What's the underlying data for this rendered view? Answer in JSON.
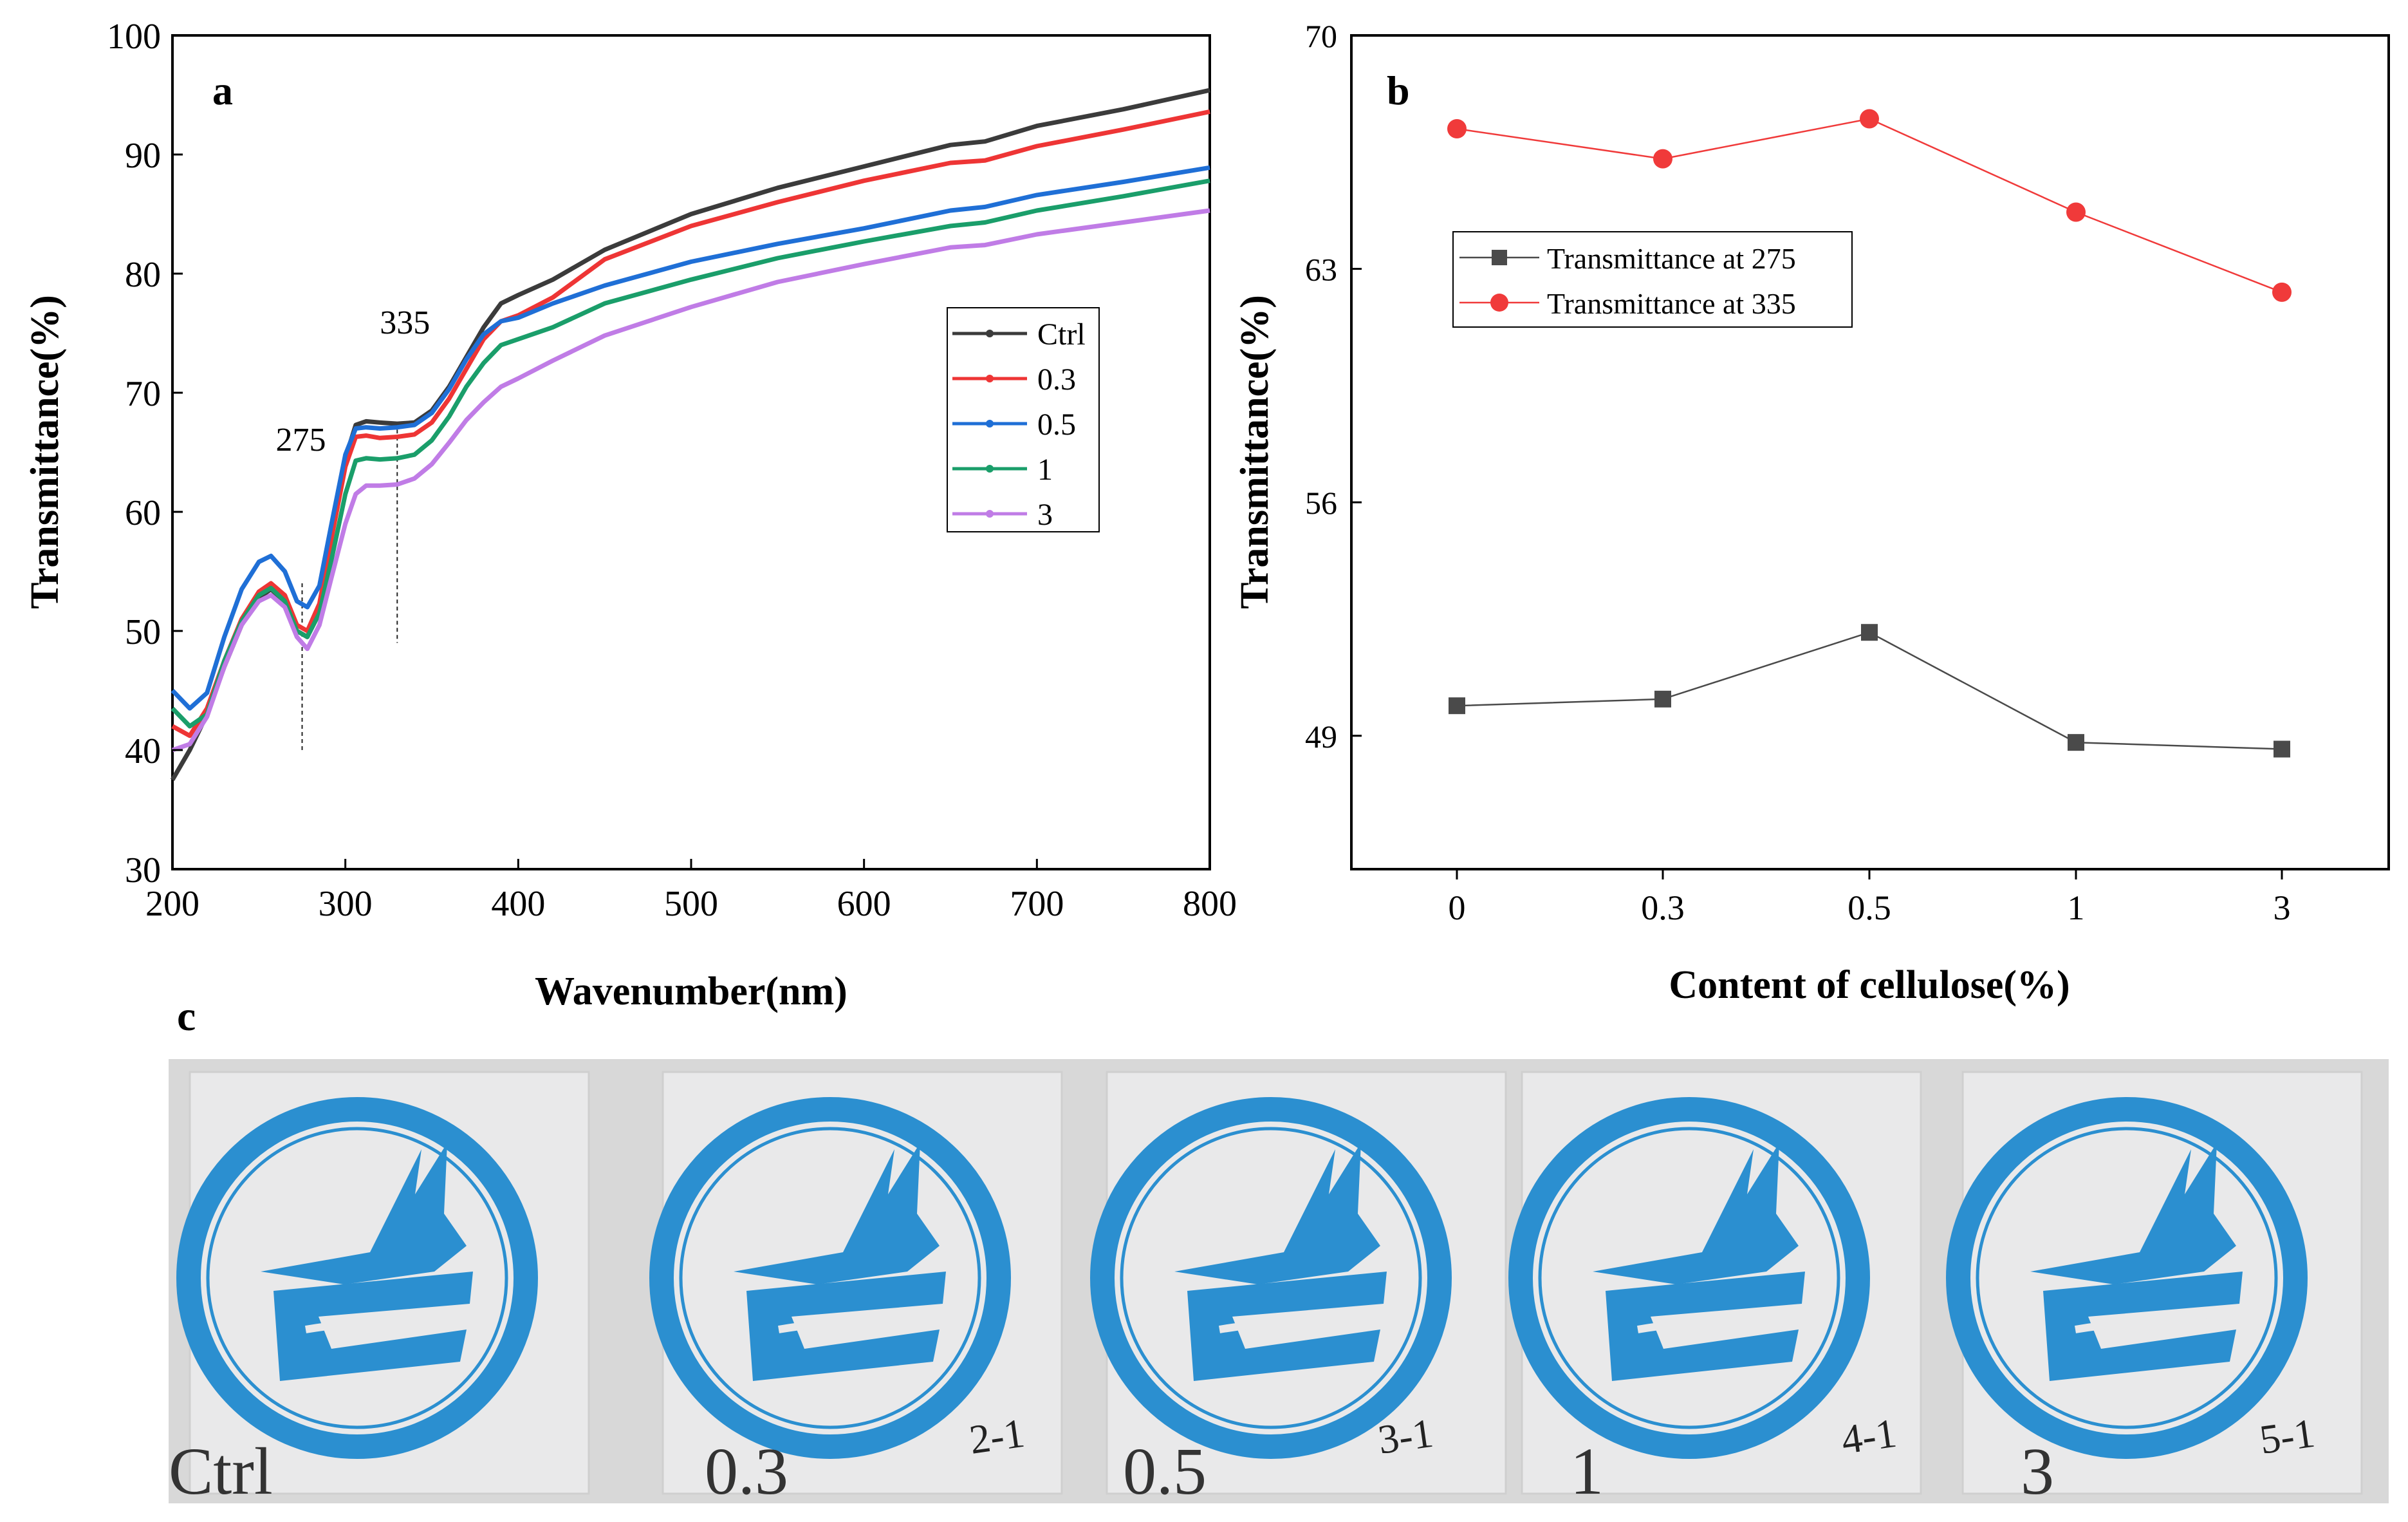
{
  "panel_labels": {
    "a": "a",
    "b": "b",
    "c": "c"
  },
  "colors": {
    "ctrl": "#3b3b3b",
    "s03": "#ee3535",
    "s05": "#1f6fd6",
    "s1": "#1a9e6a",
    "s3": "#c07ce6",
    "t275": "#4a4a4a",
    "t335": "#f03a3a",
    "logo_blue": "#2b8fd0",
    "photo_bg": "#dadada"
  },
  "chart_data": [
    {
      "id": "a",
      "type": "line",
      "title": "",
      "xlabel": "Wavenumber(nm)",
      "ylabel": "Transmittance(%)",
      "xlim": [
        200,
        800
      ],
      "ylim": [
        30,
        100
      ],
      "xticks": [
        200,
        300,
        400,
        500,
        600,
        700,
        800
      ],
      "yticks": [
        30,
        40,
        50,
        60,
        70,
        80,
        90,
        100
      ],
      "grid": false,
      "legend_position": "right",
      "annotations": [
        {
          "text": "275",
          "x": 275
        },
        {
          "text": "335",
          "x": 330
        }
      ],
      "x": [
        200,
        210,
        220,
        230,
        240,
        250,
        257,
        265,
        272,
        278,
        285,
        292,
        300,
        306,
        312,
        320,
        330,
        340,
        350,
        360,
        370,
        380,
        390,
        400,
        420,
        450,
        500,
        550,
        600,
        650,
        670,
        700,
        750,
        800
      ],
      "series": [
        {
          "name": "Ctrl",
          "color_key": "ctrl",
          "values": [
            37.5,
            40.0,
            43.0,
            47.0,
            50.5,
            52.8,
            53.5,
            52.5,
            50.0,
            49.5,
            52.0,
            58.0,
            64.5,
            67.3,
            67.6,
            67.5,
            67.4,
            67.5,
            68.5,
            70.5,
            73.0,
            75.5,
            77.5,
            78.2,
            79.5,
            82.0,
            85.0,
            87.2,
            89.0,
            90.8,
            91.1,
            92.4,
            93.8,
            95.4
          ]
        },
        {
          "name": "0.3",
          "color_key": "s03",
          "values": [
            42.0,
            41.2,
            43.5,
            47.5,
            51.0,
            53.3,
            54.0,
            53.0,
            50.5,
            50.0,
            52.3,
            57.8,
            63.8,
            66.3,
            66.4,
            66.2,
            66.3,
            66.5,
            67.5,
            69.5,
            72.0,
            74.5,
            76.0,
            76.5,
            78.0,
            81.2,
            84.0,
            86.0,
            87.8,
            89.3,
            89.5,
            90.7,
            92.1,
            93.6
          ]
        },
        {
          "name": "0.5",
          "color_key": "s05",
          "values": [
            45.0,
            43.5,
            44.8,
            49.5,
            53.5,
            55.8,
            56.3,
            55.0,
            52.5,
            52.0,
            53.8,
            59.0,
            64.8,
            67.0,
            67.1,
            67.0,
            67.1,
            67.3,
            68.3,
            70.3,
            72.8,
            74.9,
            76.0,
            76.3,
            77.5,
            79.0,
            81.0,
            82.5,
            83.8,
            85.3,
            85.6,
            86.6,
            87.7,
            88.9
          ]
        },
        {
          "name": "1",
          "color_key": "s1",
          "values": [
            43.5,
            42.0,
            43.0,
            47.5,
            50.8,
            53.0,
            53.6,
            52.5,
            50.0,
            49.5,
            51.5,
            56.0,
            61.5,
            64.3,
            64.5,
            64.4,
            64.5,
            64.8,
            66.0,
            68.0,
            70.5,
            72.5,
            74.0,
            74.5,
            75.5,
            77.5,
            79.5,
            81.3,
            82.7,
            84.0,
            84.3,
            85.3,
            86.5,
            87.8
          ]
        },
        {
          "name": "3",
          "color_key": "s3",
          "values": [
            40.0,
            40.5,
            42.8,
            47.0,
            50.5,
            52.5,
            53.0,
            52.0,
            49.5,
            48.5,
            50.5,
            54.5,
            59.0,
            61.5,
            62.2,
            62.2,
            62.3,
            62.8,
            64.0,
            65.8,
            67.7,
            69.2,
            70.5,
            71.2,
            72.7,
            74.8,
            77.2,
            79.3,
            80.8,
            82.2,
            82.4,
            83.3,
            84.3,
            85.3
          ]
        }
      ]
    },
    {
      "id": "b",
      "type": "line",
      "title": "",
      "xlabel": "Content of cellulose(%)",
      "ylabel": "Transmittance(%)",
      "categories": [
        "0",
        "0.3",
        "0.5",
        "1",
        "3"
      ],
      "ylim": [
        45,
        70
      ],
      "yticks": [
        49,
        56,
        63,
        70
      ],
      "grid": false,
      "legend_position": "top-left",
      "series": [
        {
          "name": "Transmittance at 275",
          "color_key": "t275",
          "marker": "square",
          "values": [
            49.9,
            50.1,
            52.1,
            48.8,
            48.6
          ]
        },
        {
          "name": "Transmittance at 335",
          "color_key": "t335",
          "marker": "circle",
          "values": [
            67.2,
            66.3,
            67.5,
            64.7,
            62.3
          ]
        }
      ]
    }
  ],
  "photo": {
    "samples": [
      {
        "label": "Ctrl",
        "mark": ""
      },
      {
        "label": "0.3",
        "mark": "2-1"
      },
      {
        "label": "0.5",
        "mark": "3-1"
      },
      {
        "label": "1",
        "mark": "4-1"
      },
      {
        "label": "3",
        "mark": "5-1"
      }
    ]
  }
}
